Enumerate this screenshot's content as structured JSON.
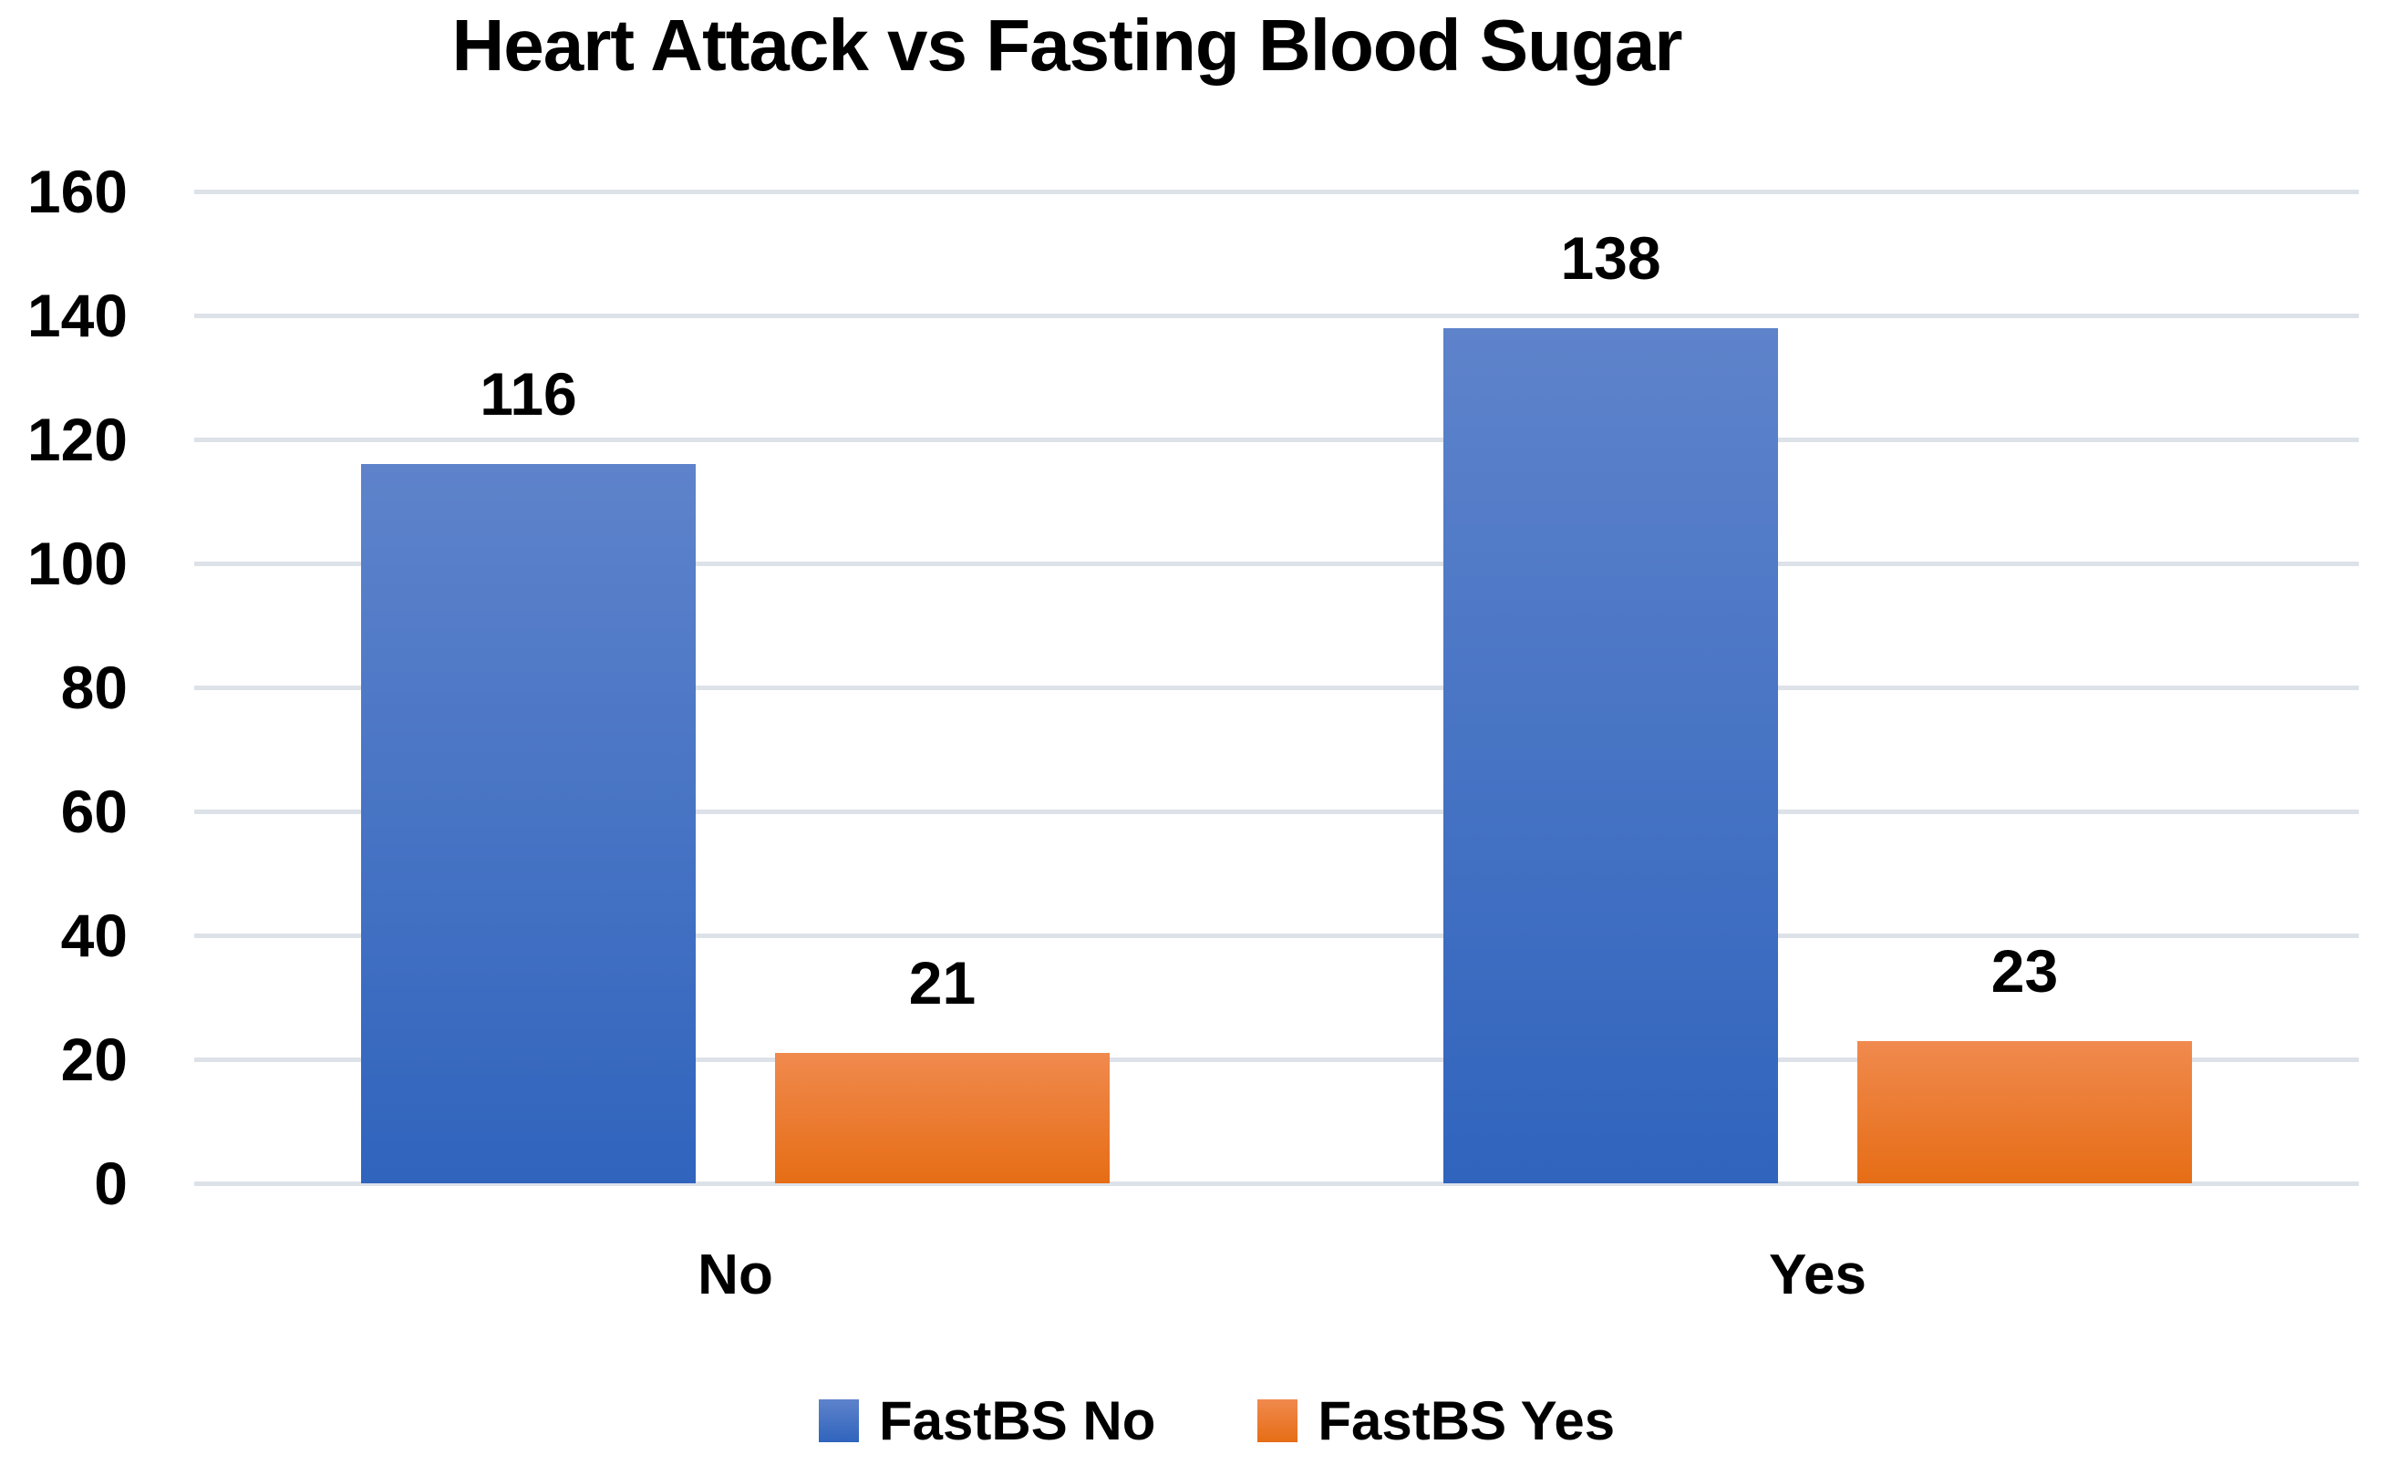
{
  "chart_data": {
    "type": "bar",
    "title": "Heart Attack vs Fasting Blood Sugar",
    "categories": [
      "No",
      "Yes"
    ],
    "series": [
      {
        "name": "FastBS No",
        "values": [
          116,
          138
        ],
        "color_top": "#5e83cb",
        "color_bottom": "#3064bd"
      },
      {
        "name": "FastBS Yes",
        "values": [
          21,
          23
        ],
        "color_top": "#f08a4e",
        "color_bottom": "#e66d15"
      }
    ],
    "data_labels": true,
    "xlabel": "",
    "ylabel": "",
    "ylim": [
      0,
      160
    ],
    "yticks": [
      0,
      20,
      40,
      60,
      80,
      100,
      120,
      140,
      160
    ],
    "grid": true,
    "gridline_color": "#dde2e9",
    "text_color": "#000000",
    "background_color": "#ffffff",
    "legend_position": "bottom"
  }
}
